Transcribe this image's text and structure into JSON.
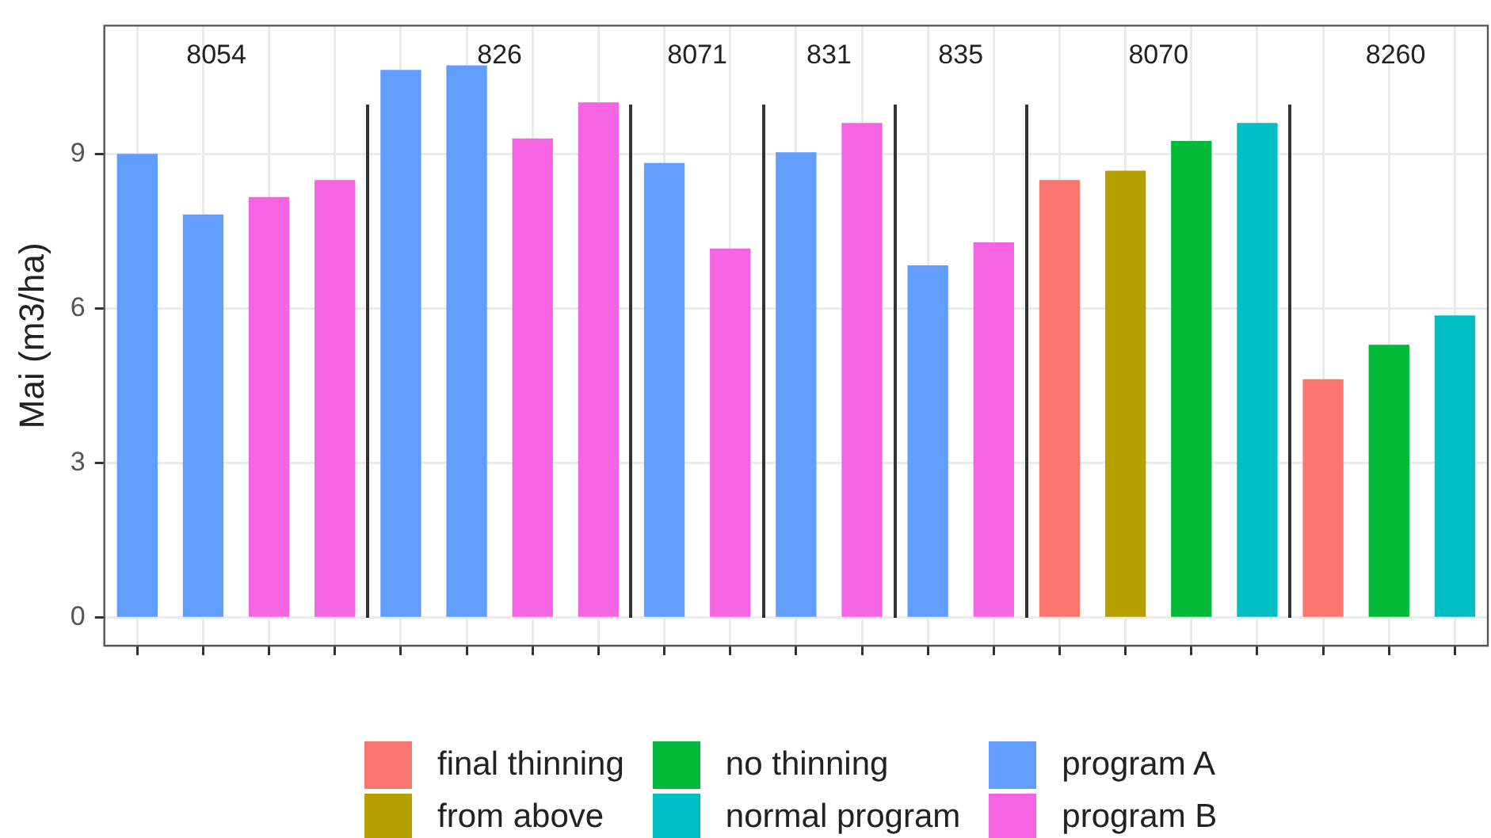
{
  "chart_data": {
    "type": "bar",
    "ylabel": "Mai (m3/ha)",
    "categories": [
      null,
      null,
      null,
      null,
      null,
      null,
      null,
      null,
      null,
      null,
      null,
      null,
      null,
      null,
      null,
      null,
      null,
      null,
      null,
      null,
      null
    ],
    "ylim": [
      -0.55,
      11.5
    ],
    "yticks": [
      0,
      3,
      6,
      9
    ],
    "series": [
      {
        "name": "final thinning",
        "color": "#f8766d",
        "values": [
          null,
          null,
          null,
          null,
          null,
          null,
          null,
          null,
          null,
          null,
          null,
          null,
          null,
          null,
          8.49,
          null,
          null,
          null,
          4.62,
          null,
          null
        ]
      },
      {
        "name": "from above",
        "color": "#b79f00",
        "values": [
          null,
          null,
          null,
          null,
          null,
          null,
          null,
          null,
          null,
          null,
          null,
          null,
          null,
          null,
          null,
          8.67,
          null,
          null,
          null,
          null,
          null
        ]
      },
      {
        "name": "no thinning",
        "color": "#00ba38",
        "values": [
          null,
          null,
          null,
          null,
          null,
          null,
          null,
          null,
          null,
          null,
          null,
          null,
          null,
          null,
          null,
          null,
          9.25,
          null,
          null,
          5.29,
          null
        ]
      },
      {
        "name": "normal program",
        "color": "#00bfc4",
        "values": [
          null,
          null,
          null,
          null,
          null,
          null,
          null,
          null,
          null,
          null,
          null,
          null,
          null,
          null,
          null,
          null,
          null,
          9.6,
          null,
          null,
          5.86
        ]
      },
      {
        "name": "program A",
        "color": "#619cff",
        "values": [
          9.0,
          7.82,
          null,
          null,
          10.63,
          10.72,
          null,
          null,
          8.82,
          null,
          9.03,
          null,
          6.83,
          null,
          null,
          null,
          null,
          null,
          null,
          null,
          null
        ]
      },
      {
        "name": "program B",
        "color": "#f564e3",
        "values": [
          null,
          null,
          8.16,
          8.49,
          null,
          null,
          9.3,
          10.0,
          null,
          7.16,
          null,
          9.6,
          null,
          7.28,
          null,
          null,
          null,
          null,
          null,
          null,
          null
        ]
      }
    ],
    "annotations": [
      "8054",
      "826",
      "8071",
      "831",
      "835",
      "8070",
      "8260"
    ],
    "grid": true,
    "legend": "bottom",
    "tick_labels": "y"
  }
}
